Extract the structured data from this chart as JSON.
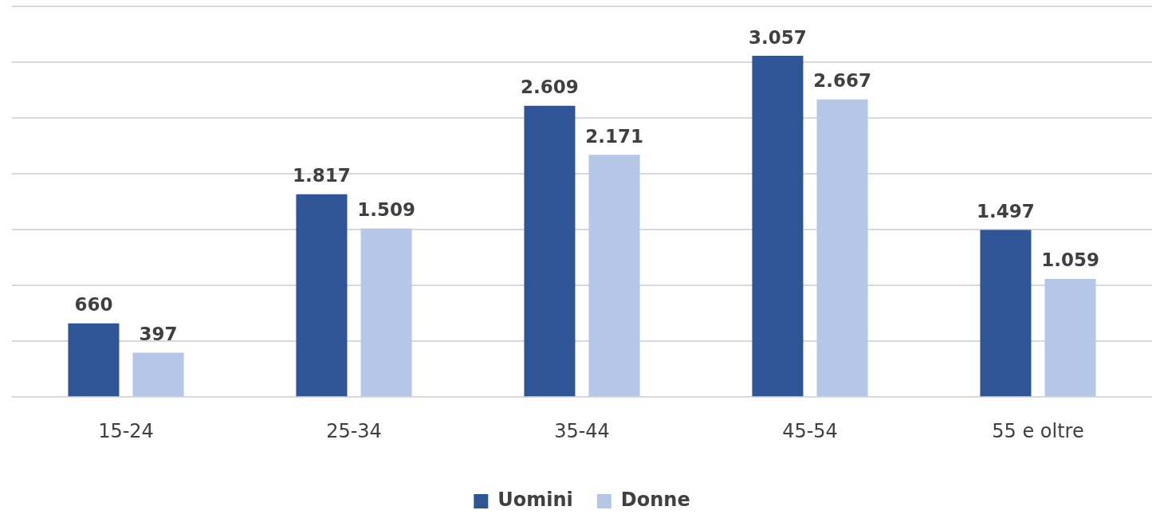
{
  "chart_data": {
    "type": "bar",
    "categories": [
      "15-24",
      "25-34",
      "35-44",
      "45-54",
      "55 e oltre"
    ],
    "series": [
      {
        "name": "Uomini",
        "color": "#2f5597",
        "values": [
          660,
          1817,
          2609,
          3057,
          1497
        ],
        "value_labels": [
          "660",
          "1.817",
          "2.609",
          "3.057",
          "1.497"
        ]
      },
      {
        "name": "Donne",
        "color": "#b4c7e7",
        "values": [
          397,
          1509,
          2171,
          2667,
          1059
        ],
        "value_labels": [
          "397",
          "1.509",
          "2.171",
          "2.667",
          "1.059"
        ]
      }
    ],
    "ylim": [
      0,
      3500
    ],
    "yticks": [
      {
        "value": 0,
        "label": null
      },
      {
        "value": 500,
        "label": null
      },
      {
        "value": 1000,
        "label": null
      },
      {
        "value": 1500,
        "label": null
      },
      {
        "value": 2000,
        "label": null
      },
      {
        "value": 2500,
        "label": null
      },
      {
        "value": 3000,
        "label": null
      },
      {
        "value": 3500,
        "label": null
      }
    ],
    "tick_labels": "x",
    "grid": "y",
    "legend": "bottom"
  }
}
